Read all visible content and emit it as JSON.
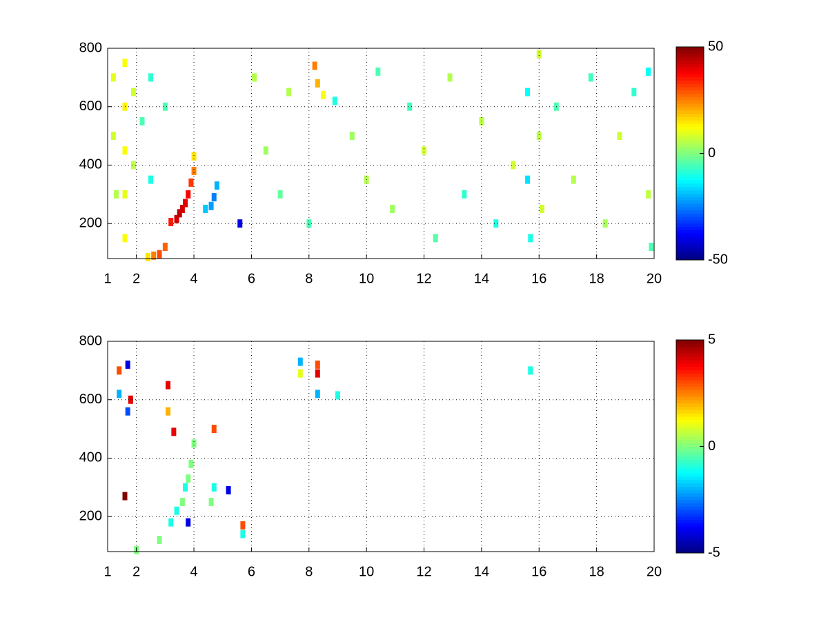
{
  "chart_data": [
    {
      "type": "heatmap",
      "colormap": "jet",
      "grid": true,
      "xlim": [
        1,
        20
      ],
      "ylim": [
        80,
        800
      ],
      "xticks": [
        1,
        2,
        4,
        6,
        8,
        10,
        12,
        14,
        16,
        18,
        20
      ],
      "yticks": [
        200,
        400,
        600,
        800
      ],
      "clim": [
        -50,
        50
      ],
      "cticks": [
        -50,
        0,
        50
      ],
      "x": [
        2.8,
        3.0,
        3.2,
        3.4,
        3.5,
        3.6,
        3.7,
        3.8,
        3.9,
        4.0,
        4.0,
        2.6,
        2.4,
        4.4,
        4.6,
        4.7,
        4.8,
        5.6,
        1.2,
        1.2,
        1.3,
        1.6,
        1.6,
        1.6,
        1.6,
        1.6,
        1.9,
        1.9,
        2.2,
        2.5,
        2.5,
        3.0,
        6.1,
        6.5,
        7.0,
        7.3,
        8.0,
        8.2,
        8.3,
        8.5,
        8.9,
        9.5,
        10.0,
        10.4,
        10.9,
        11.5,
        12.0,
        12.4,
        12.9,
        13.4,
        14.0,
        14.5,
        15.1,
        15.6,
        15.6,
        15.7,
        16.0,
        16.0,
        16.1,
        16.6,
        17.2,
        17.8,
        18.3,
        18.8,
        19.3,
        19.8,
        19.8,
        19.9
      ],
      "y": [
        95,
        120,
        205,
        215,
        235,
        250,
        270,
        300,
        340,
        380,
        430,
        90,
        85,
        250,
        260,
        290,
        330,
        200,
        700,
        500,
        300,
        750,
        600,
        450,
        300,
        150,
        650,
        400,
        550,
        700,
        350,
        600,
        700,
        450,
        300,
        650,
        200,
        740,
        680,
        640,
        620,
        500,
        350,
        720,
        250,
        600,
        450,
        150,
        700,
        300,
        550,
        200,
        400,
        650,
        350,
        150,
        780,
        500,
        250,
        600,
        350,
        700,
        200,
        500,
        650,
        720,
        300,
        120
      ],
      "values": [
        30,
        28,
        35,
        42,
        44,
        42,
        40,
        38,
        32,
        25,
        15,
        25,
        15,
        -18,
        -22,
        -25,
        -20,
        -40,
        10,
        8,
        5,
        12,
        14,
        12,
        10,
        12,
        8,
        6,
        -5,
        -8,
        -10,
        -5,
        5,
        3,
        -3,
        5,
        -5,
        25,
        20,
        12,
        -10,
        3,
        5,
        -5,
        3,
        -6,
        8,
        -4,
        5,
        -8,
        6,
        -10,
        8,
        -12,
        -15,
        -10,
        8,
        6,
        8,
        -5,
        5,
        -6,
        4,
        8,
        -8,
        -12,
        6,
        -5
      ]
    },
    {
      "type": "heatmap",
      "colormap": "jet",
      "grid": true,
      "xlim": [
        1,
        20
      ],
      "ylim": [
        80,
        800
      ],
      "xticks": [
        1,
        2,
        4,
        6,
        8,
        10,
        12,
        14,
        16,
        18,
        20
      ],
      "yticks": [
        200,
        400,
        600,
        800
      ],
      "clim": [
        -5,
        5
      ],
      "cticks": [
        -5,
        0,
        5
      ],
      "x": [
        1.4,
        1.4,
        1.7,
        1.7,
        1.8,
        3.1,
        3.1,
        3.3,
        2.8,
        3.2,
        3.4,
        3.6,
        3.7,
        3.8,
        3.9,
        4.0,
        3.8,
        4.7,
        4.7,
        4.6,
        5.2,
        5.7,
        5.7,
        7.7,
        7.7,
        8.3,
        8.3,
        8.3,
        9.0,
        15.7,
        2.0,
        1.6
      ],
      "y": [
        700,
        620,
        720,
        560,
        600,
        650,
        560,
        490,
        120,
        180,
        220,
        250,
        300,
        330,
        380,
        450,
        180,
        500,
        300,
        250,
        290,
        170,
        140,
        730,
        690,
        720,
        690,
        620,
        615,
        700,
        85,
        270
      ],
      "values": [
        3,
        -2,
        -4,
        -3,
        4,
        4,
        2,
        4,
        0,
        -1,
        -1,
        0,
        -1,
        0,
        0,
        0,
        -4,
        3,
        -1,
        0,
        -4,
        3,
        -1,
        -2,
        1,
        3,
        4,
        -2,
        -1,
        -1,
        0,
        5
      ]
    }
  ]
}
